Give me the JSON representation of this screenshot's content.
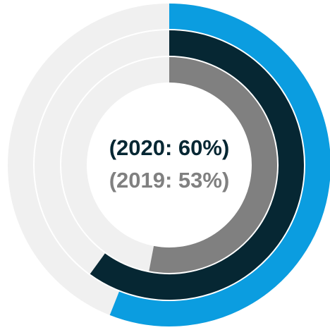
{
  "chart_data": {
    "type": "radial_bar",
    "values": [
      56,
      60,
      53
    ],
    "colors": [
      "#0b9de0",
      "#062733",
      "#808080"
    ],
    "value_labels": [
      null,
      "(2020: 60%)",
      "(2019: 53%)"
    ],
    "label_colors": [
      null,
      "#062733",
      "#808080"
    ],
    "ylim": [
      0,
      100
    ],
    "track_color": "#f0f0f0"
  }
}
